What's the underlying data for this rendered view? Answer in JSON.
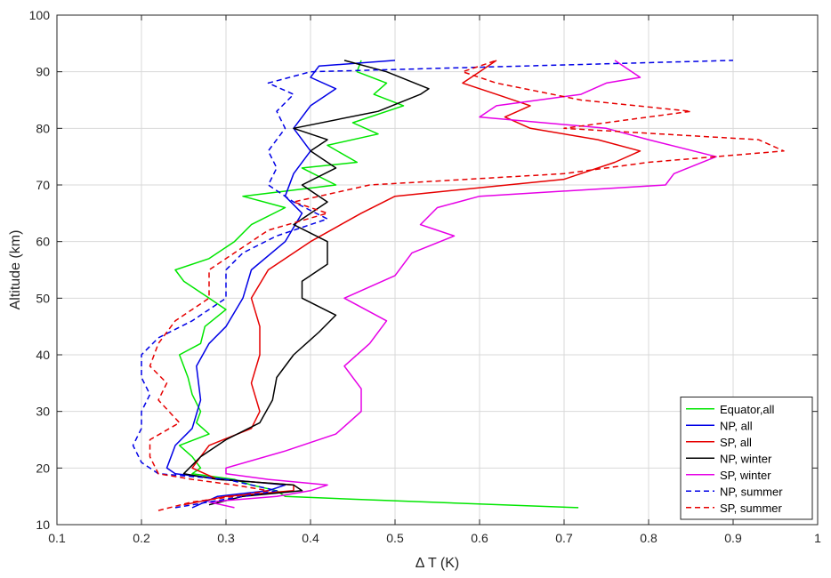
{
  "chart_data": {
    "type": "line",
    "title": "",
    "xlabel": "Δ T (K)",
    "ylabel": "Altitude (km)",
    "xlim": [
      0.1,
      1.0
    ],
    "ylim": [
      10,
      100
    ],
    "xticks": [
      "0.1",
      "0.2",
      "0.3",
      "0.4",
      "0.5",
      "0.6",
      "0.7",
      "0.8",
      "0.9",
      "1"
    ],
    "yticks": [
      "10",
      "20",
      "30",
      "40",
      "50",
      "60",
      "70",
      "80",
      "90",
      "100"
    ],
    "grid": true,
    "legend_position": "bottom-right",
    "series": [
      {
        "name": "Equator,all",
        "color": "#00e600",
        "dash": "solid",
        "points": [
          [
            0.717,
            13
          ],
          [
            0.45,
            14.5
          ],
          [
            0.37,
            15
          ],
          [
            0.36,
            16
          ],
          [
            0.33,
            17
          ],
          [
            0.31,
            18
          ],
          [
            0.26,
            19
          ],
          [
            0.27,
            20
          ],
          [
            0.26,
            22
          ],
          [
            0.245,
            24
          ],
          [
            0.28,
            26
          ],
          [
            0.265,
            28
          ],
          [
            0.27,
            30
          ],
          [
            0.26,
            33
          ],
          [
            0.255,
            36
          ],
          [
            0.245,
            40
          ],
          [
            0.27,
            42
          ],
          [
            0.275,
            45
          ],
          [
            0.3,
            48
          ],
          [
            0.28,
            50
          ],
          [
            0.25,
            53
          ],
          [
            0.24,
            55
          ],
          [
            0.28,
            57
          ],
          [
            0.31,
            60
          ],
          [
            0.33,
            63
          ],
          [
            0.37,
            66
          ],
          [
            0.32,
            68
          ],
          [
            0.43,
            70
          ],
          [
            0.39,
            73
          ],
          [
            0.455,
            74
          ],
          [
            0.42,
            77
          ],
          [
            0.48,
            79
          ],
          [
            0.45,
            81
          ],
          [
            0.51,
            84
          ],
          [
            0.475,
            86
          ],
          [
            0.49,
            88
          ],
          [
            0.455,
            90
          ],
          [
            0.46,
            92
          ]
        ]
      },
      {
        "name": "NP, all",
        "color": "#0000e6",
        "dash": "solid",
        "points": [
          [
            0.26,
            13
          ],
          [
            0.29,
            15
          ],
          [
            0.35,
            16
          ],
          [
            0.37,
            17
          ],
          [
            0.3,
            18
          ],
          [
            0.24,
            19
          ],
          [
            0.23,
            20
          ],
          [
            0.24,
            24
          ],
          [
            0.26,
            27
          ],
          [
            0.27,
            32
          ],
          [
            0.265,
            38
          ],
          [
            0.28,
            42
          ],
          [
            0.3,
            45
          ],
          [
            0.32,
            50
          ],
          [
            0.33,
            55
          ],
          [
            0.37,
            60
          ],
          [
            0.39,
            65
          ],
          [
            0.37,
            68
          ],
          [
            0.38,
            72
          ],
          [
            0.4,
            76
          ],
          [
            0.38,
            80
          ],
          [
            0.4,
            84
          ],
          [
            0.43,
            87
          ],
          [
            0.4,
            89
          ],
          [
            0.41,
            91
          ],
          [
            0.5,
            92
          ]
        ]
      },
      {
        "name": "SP, all",
        "color": "#e60000",
        "dash": "solid",
        "points": [
          [
            0.25,
            13.5
          ],
          [
            0.3,
            15
          ],
          [
            0.38,
            16
          ],
          [
            0.38,
            17
          ],
          [
            0.29,
            18
          ],
          [
            0.26,
            20
          ],
          [
            0.28,
            24
          ],
          [
            0.33,
            27
          ],
          [
            0.34,
            30
          ],
          [
            0.33,
            35
          ],
          [
            0.34,
            40
          ],
          [
            0.34,
            45
          ],
          [
            0.33,
            50
          ],
          [
            0.35,
            55
          ],
          [
            0.4,
            60
          ],
          [
            0.46,
            65
          ],
          [
            0.5,
            68
          ],
          [
            0.7,
            71
          ],
          [
            0.76,
            74
          ],
          [
            0.79,
            76
          ],
          [
            0.74,
            78
          ],
          [
            0.66,
            80
          ],
          [
            0.63,
            82
          ],
          [
            0.66,
            84
          ],
          [
            0.62,
            86
          ],
          [
            0.58,
            88
          ],
          [
            0.6,
            90
          ],
          [
            0.62,
            92
          ]
        ]
      },
      {
        "name": "NP, winter",
        "color": "#000000",
        "dash": "solid",
        "points": [
          [
            0.28,
            13.5
          ],
          [
            0.32,
            15
          ],
          [
            0.39,
            16
          ],
          [
            0.38,
            17
          ],
          [
            0.29,
            18
          ],
          [
            0.25,
            19
          ],
          [
            0.27,
            22
          ],
          [
            0.3,
            25
          ],
          [
            0.34,
            28
          ],
          [
            0.355,
            32
          ],
          [
            0.36,
            36
          ],
          [
            0.38,
            40
          ],
          [
            0.41,
            44
          ],
          [
            0.43,
            47
          ],
          [
            0.39,
            50
          ],
          [
            0.39,
            53
          ],
          [
            0.42,
            56
          ],
          [
            0.42,
            60
          ],
          [
            0.38,
            63
          ],
          [
            0.42,
            67
          ],
          [
            0.39,
            70
          ],
          [
            0.43,
            73
          ],
          [
            0.4,
            76
          ],
          [
            0.42,
            78
          ],
          [
            0.38,
            80
          ],
          [
            0.48,
            83
          ],
          [
            0.53,
            86
          ],
          [
            0.54,
            87
          ],
          [
            0.49,
            90
          ],
          [
            0.44,
            92
          ]
        ]
      },
      {
        "name": "SP, winter",
        "color": "#e600e6",
        "dash": "solid",
        "points": [
          [
            0.31,
            13
          ],
          [
            0.28,
            14
          ],
          [
            0.36,
            15
          ],
          [
            0.4,
            16
          ],
          [
            0.42,
            17
          ],
          [
            0.35,
            18
          ],
          [
            0.3,
            19
          ],
          [
            0.3,
            20
          ],
          [
            0.37,
            23
          ],
          [
            0.43,
            26
          ],
          [
            0.46,
            30
          ],
          [
            0.46,
            34
          ],
          [
            0.44,
            38
          ],
          [
            0.47,
            42
          ],
          [
            0.49,
            46
          ],
          [
            0.44,
            50
          ],
          [
            0.5,
            54
          ],
          [
            0.52,
            58
          ],
          [
            0.57,
            61
          ],
          [
            0.53,
            63
          ],
          [
            0.55,
            66
          ],
          [
            0.6,
            68
          ],
          [
            0.82,
            70
          ],
          [
            0.83,
            72
          ],
          [
            0.88,
            75
          ],
          [
            0.8,
            78
          ],
          [
            0.75,
            80
          ],
          [
            0.6,
            82
          ],
          [
            0.62,
            84
          ],
          [
            0.72,
            86
          ],
          [
            0.75,
            88
          ],
          [
            0.79,
            89
          ],
          [
            0.76,
            92
          ]
        ]
      },
      {
        "name": "NP, summer",
        "color": "#0000e6",
        "dash": "dashed",
        "points": [
          [
            0.24,
            13
          ],
          [
            0.28,
            14
          ],
          [
            0.32,
            15
          ],
          [
            0.36,
            16
          ],
          [
            0.33,
            17
          ],
          [
            0.3,
            18
          ],
          [
            0.22,
            19
          ],
          [
            0.2,
            21
          ],
          [
            0.19,
            24
          ],
          [
            0.2,
            27
          ],
          [
            0.2,
            30
          ],
          [
            0.21,
            33
          ],
          [
            0.2,
            36
          ],
          [
            0.2,
            40
          ],
          [
            0.22,
            43
          ],
          [
            0.26,
            46
          ],
          [
            0.3,
            50
          ],
          [
            0.3,
            55
          ],
          [
            0.32,
            58
          ],
          [
            0.36,
            61
          ],
          [
            0.42,
            64
          ],
          [
            0.38,
            67
          ],
          [
            0.35,
            70
          ],
          [
            0.36,
            73
          ],
          [
            0.35,
            76
          ],
          [
            0.37,
            80
          ],
          [
            0.36,
            83
          ],
          [
            0.38,
            86
          ],
          [
            0.35,
            88
          ],
          [
            0.4,
            90
          ],
          [
            0.9,
            92
          ]
        ]
      },
      {
        "name": "SP, summer",
        "color": "#e60000",
        "dash": "dashed",
        "points": [
          [
            0.22,
            12.5
          ],
          [
            0.26,
            14
          ],
          [
            0.31,
            15
          ],
          [
            0.35,
            16
          ],
          [
            0.31,
            17
          ],
          [
            0.26,
            18
          ],
          [
            0.22,
            19
          ],
          [
            0.21,
            22
          ],
          [
            0.21,
            25
          ],
          [
            0.245,
            28
          ],
          [
            0.22,
            32
          ],
          [
            0.23,
            35
          ],
          [
            0.21,
            38
          ],
          [
            0.22,
            42
          ],
          [
            0.24,
            46
          ],
          [
            0.28,
            50
          ],
          [
            0.28,
            55
          ],
          [
            0.31,
            58
          ],
          [
            0.35,
            62
          ],
          [
            0.42,
            65
          ],
          [
            0.38,
            67
          ],
          [
            0.47,
            70
          ],
          [
            0.7,
            72
          ],
          [
            0.8,
            74
          ],
          [
            0.96,
            76
          ],
          [
            0.93,
            78
          ],
          [
            0.7,
            80
          ],
          [
            0.85,
            83
          ],
          [
            0.72,
            85
          ],
          [
            0.62,
            88
          ],
          [
            0.58,
            90
          ],
          [
            0.62,
            92
          ]
        ]
      }
    ]
  }
}
